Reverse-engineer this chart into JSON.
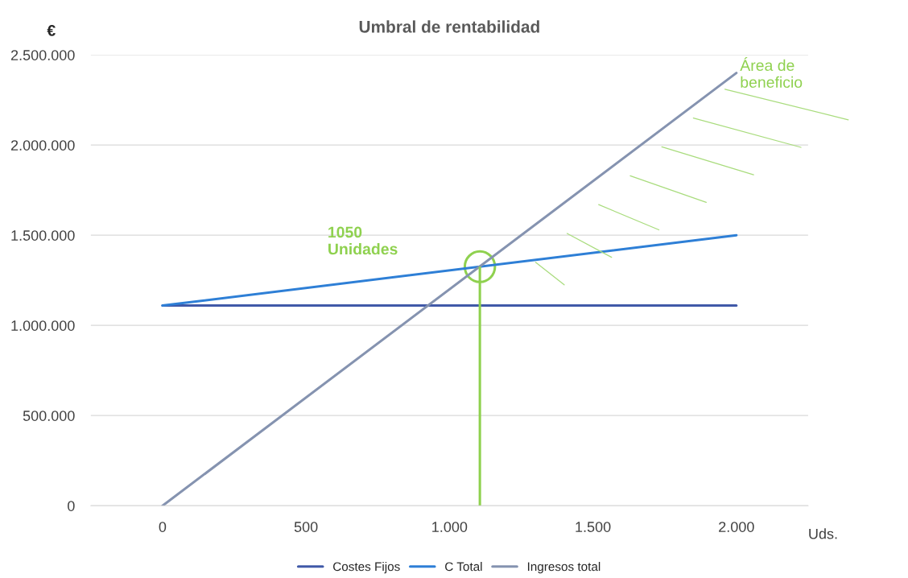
{
  "chart_data": {
    "type": "line",
    "title": "Umbral de rentabilidad",
    "xlabel": "Uds.",
    "ylabel": "€",
    "x": [
      0,
      2000
    ],
    "series": [
      {
        "name": "Costes Fijos",
        "color": "#4059a8",
        "values": [
          1110000,
          1110000
        ]
      },
      {
        "name": "C Total",
        "color": "#2e7fd6",
        "values": [
          1110000,
          1500000
        ]
      },
      {
        "name": "Ingresos total",
        "color": "#8593b0",
        "values": [
          0,
          2400000
        ]
      }
    ],
    "xlim": [
      -250,
      2250
    ],
    "xticks": [
      0,
      {
        "value": 500,
        "label": "500"
      },
      {
        "value": 1000,
        "label": "1.000"
      },
      {
        "value": 1500,
        "label": "1.500"
      },
      {
        "value": 2000,
        "label": "2.000"
      }
    ],
    "ylim": [
      0,
      2500000
    ],
    "yticks": [
      0,
      {
        "value": 500000,
        "label": "500.000"
      },
      {
        "value": 1000000,
        "label": "1.000.000"
      },
      {
        "value": 1500000,
        "label": "1.500.000"
      },
      {
        "value": 2000000,
        "label": "2.000.000"
      },
      {
        "value": 2500000,
        "label": "2.500.000"
      }
    ],
    "ref_lines": [
      {
        "axis": "x",
        "value": 1106,
        "color": "#8fd14f"
      }
    ],
    "annotations": [
      "1050\nUnidades",
      "Área de\nbeneficio"
    ],
    "grid": "y",
    "legend": "bottom",
    "marker": "none",
    "line_style": "solid"
  }
}
